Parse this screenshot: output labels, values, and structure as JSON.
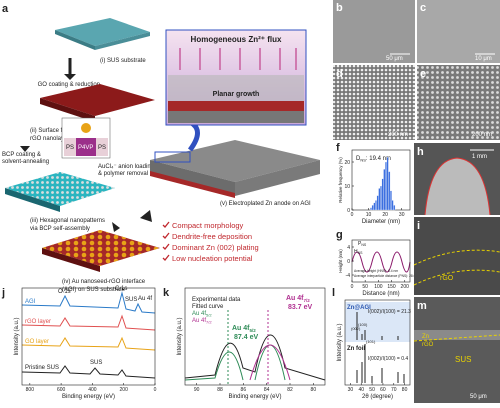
{
  "a": {
    "label": "a",
    "go_step": "GO coating & reduction",
    "bcp_step": [
      "BCP coating &",
      "solvent-annealing"
    ],
    "anion_step": [
      "AuCl₄⁻ anion loading",
      "& polymer removal"
    ],
    "stages": [
      [
        "(i) SUS substrate"
      ],
      [
        "(ii) Surface flattening by",
        "rGO nanolayers"
      ],
      [
        "(iii) Hexagonal nanopatterns",
        "via BCP self-assembly"
      ],
      [
        "(iv) Au nanoseed-rGO interface",
        "(AGI) on SUS substrate"
      ],
      [
        "(v) Electroplated Zn anode on AGI"
      ]
    ],
    "inset_title": "Homogeneous Zn²⁺ flux",
    "inset_growth": "Planar growth",
    "blocks": [
      "PS",
      "P4VP",
      "PS"
    ],
    "benefits": [
      "Compact morphology",
      "Dendrite-free deposition",
      "Dominant Zn (002) plating",
      "Low nucleation potential"
    ]
  },
  "b": {
    "label": "b",
    "scale": "50 μm"
  },
  "c": {
    "label": "c",
    "scale": "10 μm"
  },
  "d": {
    "label": "d",
    "scale": "200 nm"
  },
  "e": {
    "label": "e",
    "scale": "200 nm"
  },
  "f": {
    "label": "f",
    "annotation": [
      "D",
      "NS",
      ": 19.4 nm"
    ],
    "chart": {
      "type": "histogram",
      "bins": [
        11,
        12,
        13,
        14,
        15,
        16,
        17,
        18,
        19,
        20,
        21,
        22,
        23,
        24,
        25,
        26
      ],
      "counts": [
        1,
        2,
        3,
        4,
        6,
        9,
        10,
        13,
        17,
        20,
        22,
        16,
        8,
        4,
        2
      ],
      "color": "#3b6fe0",
      "xlim": [
        0,
        35
      ],
      "ylim": [
        0,
        25
      ],
      "xticks": [
        0,
        10,
        20,
        30
      ],
      "yticks": [
        0,
        10,
        20
      ],
      "xlabel": "Diameter (nm)",
      "ylabel": "Relative frequency (%)"
    }
  },
  "g": {
    "label": "g",
    "p_label": [
      "P",
      "NS"
    ],
    "h_label": [
      "H",
      "NS"
    ],
    "notes": [
      "Average height (HNS): 6.4 nm",
      "Average interparticle distance (PNS): 28.0 nm"
    ],
    "chart": {
      "xlim": [
        0,
        220
      ],
      "ylim": [
        -6,
        6
      ],
      "xticks": [
        0,
        50,
        100,
        150,
        200
      ],
      "yticks": [
        -4,
        0,
        4
      ],
      "xlabel": "Distance (nm)",
      "ylabel": "Height (nm)"
    }
  },
  "h": {
    "label": "h",
    "scale": "1 mm"
  },
  "i": {
    "label": "i",
    "layer": "rGO"
  },
  "j": {
    "label": "j",
    "series": [
      "AGI",
      "rGO layer",
      "GO layer",
      "Pristine SUS"
    ],
    "peaks": [
      "O 1s",
      "C 1s",
      "SUS",
      "Au 4f",
      "SUS"
    ],
    "chart": {
      "xlim": [
        850,
        0
      ],
      "xticks": [
        800,
        600,
        400,
        200,
        0
      ],
      "xlabel": "Binding energy (eV)",
      "ylabel": "Intensity (a.u.)"
    }
  },
  "k": {
    "label": "k",
    "legend": [
      "Experimental data",
      "Fitted curve",
      [
        "Au 4f",
        "5/2"
      ],
      [
        "Au 4f",
        "7/2"
      ]
    ],
    "peak1": [
      "Au 4f",
      "5/2",
      "87.4 eV"
    ],
    "peak2": [
      "Au 4f",
      "7/2",
      "83.7 eV"
    ],
    "chart": {
      "xlim": [
        91,
        79
      ],
      "xticks": [
        90,
        88,
        86,
        84,
        82,
        80
      ],
      "xlabel": "Binding energy (eV)",
      "ylabel": "Intensity (a.u.)"
    }
  },
  "l": {
    "label": "l",
    "top": "Zn@AGI",
    "top_ratio": "I(002)/I(100) = 21.3",
    "bottom": "Zn foil",
    "bottom_ratio": "I(002)/I(100) = 0.4",
    "planes": [
      "(002)",
      "(100)",
      "(101)"
    ],
    "chart": {
      "xlim": [
        25,
        85
      ],
      "xticks": [
        30,
        40,
        50,
        60,
        70,
        80
      ],
      "xlabel": "2θ (degree)",
      "ylabel": "Intensity (a.u.)"
    }
  },
  "m": {
    "label": "m",
    "layers": [
      "Zn",
      "rGO",
      "SUS"
    ],
    "scale": "50 μm"
  }
}
